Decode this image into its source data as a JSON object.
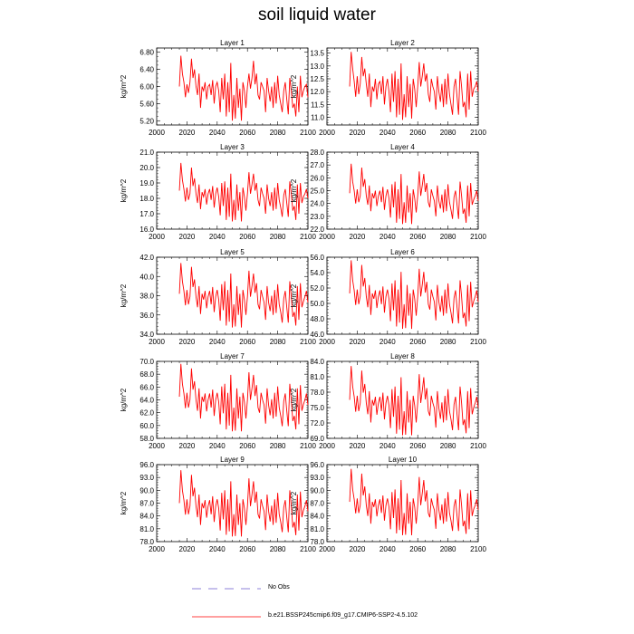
{
  "page": {
    "title": "soil liquid water"
  },
  "shared_axes": {
    "x_ticks": [
      2000,
      2020,
      2040,
      2060,
      2080,
      2100
    ],
    "xlim": [
      2000,
      2100
    ],
    "ylabel": "kg/m^2"
  },
  "series_meta": {
    "x_start": 2015,
    "x_end": 2100,
    "line_color": "#ff0000"
  },
  "legend": {
    "no_obs_label": "No Obs",
    "no_obs_color": "#6a5acd",
    "model_label": "b.e21.BSSP245cmip6.f09_g17.CMIP6-SSP2-4.5.102",
    "model_color": "#ff0000"
  },
  "chart_data": [
    {
      "type": "line",
      "title": "Layer 1",
      "ylabel": "kg/m^2",
      "ylim": [
        5.1,
        6.9
      ],
      "yticks": [
        "6.80",
        "6.40",
        "6.00",
        "5.60",
        "5.20"
      ],
      "minor_step": 0.1,
      "x_start": 2015,
      "values": [
        6.0,
        6.72,
        6.3,
        6.1,
        5.75,
        6.05,
        5.85,
        6.1,
        6.65,
        6.2,
        6.4,
        6.0,
        5.8,
        6.3,
        5.5,
        6.0,
        5.9,
        6.1,
        5.7,
        6.0,
        6.05,
        5.8,
        6.15,
        5.6,
        6.0,
        6.1,
        5.9,
        5.4,
        6.2,
        5.7,
        6.3,
        5.3,
        6.1,
        5.4,
        6.55,
        5.2,
        5.8,
        5.25,
        6.2,
        5.5,
        5.95,
        5.2,
        6.1,
        5.9,
        5.5,
        6.0,
        6.3,
        5.95,
        6.2,
        6.6,
        6.05,
        6.3,
        5.8,
        5.7,
        6.1,
        6.0,
        5.9,
        5.4,
        6.2,
        5.9,
        5.65,
        6.0,
        5.5,
        6.1,
        5.6,
        6.25,
        5.8,
        5.6,
        5.4,
        5.9,
        6.1,
        5.7,
        5.35,
        6.2,
        5.9,
        5.5,
        5.6,
        5.3,
        6.0,
        5.4,
        6.25,
        5.75,
        5.9,
        6.0,
        6.05,
        5.75
      ]
    },
    {
      "type": "line",
      "title": "Layer 2",
      "ylabel": "kg/m^2",
      "ylim": [
        10.7,
        13.7
      ],
      "yticks": [
        "13.5",
        "13.0",
        "12.5",
        "12.0",
        "11.5",
        "11.0"
      ],
      "minor_step": 0.1,
      "x_start": 2015,
      "values": [
        12.2,
        13.55,
        12.9,
        12.4,
        11.8,
        12.6,
        11.9,
        12.3,
        13.35,
        12.6,
        12.9,
        12.3,
        11.8,
        12.7,
        11.4,
        12.2,
        12.0,
        12.5,
        11.7,
        12.3,
        12.4,
        11.9,
        12.6,
        11.5,
        12.2,
        12.5,
        12.0,
        11.2,
        12.7,
        11.6,
        12.8,
        11.0,
        12.5,
        11.1,
        13.1,
        10.9,
        11.9,
        11.0,
        12.6,
        11.4,
        12.3,
        10.95,
        12.5,
        12.1,
        11.4,
        12.2,
        13.15,
        12.2,
        12.6,
        13.1,
        12.4,
        12.7,
        11.9,
        11.6,
        12.5,
        12.2,
        12.0,
        11.3,
        12.6,
        12.0,
        11.6,
        12.3,
        11.4,
        12.5,
        11.5,
        12.7,
        11.9,
        11.5,
        11.1,
        12.2,
        12.5,
        11.8,
        11.1,
        12.8,
        12.2,
        11.4,
        11.6,
        11.0,
        12.7,
        11.3,
        12.8,
        11.8,
        12.1,
        12.2,
        12.4,
        12.0
      ]
    },
    {
      "type": "line",
      "title": "Layer 3",
      "ylabel": "kg/m^2",
      "ylim": [
        16.0,
        21.0
      ],
      "yticks": [
        "21.0",
        "20.0",
        "19.0",
        "18.0",
        "17.0",
        "16.0"
      ],
      "minor_step": 0.2,
      "x_start": 2015,
      "values": [
        18.5,
        20.3,
        19.2,
        18.6,
        17.8,
        18.7,
        17.9,
        18.3,
        20.0,
        18.8,
        19.3,
        18.3,
        17.7,
        18.9,
        17.3,
        18.4,
        18.1,
        18.6,
        17.6,
        18.3,
        18.6,
        17.9,
        18.8,
        17.4,
        18.3,
        18.7,
        18.1,
        16.9,
        19.0,
        17.5,
        19.1,
        16.6,
        18.7,
        16.8,
        19.6,
        16.5,
        17.9,
        16.6,
        18.9,
        17.2,
        18.4,
        16.5,
        18.7,
        18.1,
        17.2,
        18.3,
        19.7,
        18.3,
        18.9,
        19.6,
        18.5,
        19.0,
        17.9,
        17.5,
        18.7,
        18.3,
        18.0,
        17.0,
        18.9,
        18.0,
        17.5,
        18.4,
        17.2,
        18.7,
        17.3,
        19.0,
        17.9,
        17.4,
        16.8,
        18.2,
        18.6,
        17.7,
        16.8,
        19.1,
        18.3,
        17.2,
        17.5,
        16.6,
        18.9,
        17.0,
        19.0,
        17.7,
        18.1,
        18.3,
        18.6,
        18.0
      ]
    },
    {
      "type": "line",
      "title": "Layer 4",
      "ylabel": "kg/m^2",
      "ylim": [
        22.0,
        28.0
      ],
      "yticks": [
        "28.0",
        "27.0",
        "26.0",
        "25.0",
        "24.0",
        "23.0",
        "22.0"
      ],
      "minor_step": 0.2,
      "x_start": 2015,
      "values": [
        24.8,
        27.1,
        25.7,
        25.0,
        24.0,
        25.1,
        24.1,
        24.6,
        26.8,
        25.3,
        25.9,
        24.6,
        23.9,
        25.4,
        23.4,
        24.8,
        24.4,
        25.0,
        23.8,
        24.6,
        25.0,
        24.1,
        25.3,
        23.5,
        24.6,
        25.1,
        24.4,
        22.9,
        25.5,
        23.7,
        25.7,
        22.5,
        25.1,
        22.8,
        26.3,
        22.4,
        24.1,
        22.5,
        25.4,
        23.3,
        24.8,
        22.4,
        25.1,
        24.4,
        23.3,
        24.6,
        26.5,
        24.6,
        25.4,
        26.3,
        24.9,
        25.6,
        24.1,
        23.7,
        25.1,
        24.6,
        24.2,
        23.0,
        25.4,
        24.2,
        23.6,
        24.7,
        23.3,
        25.1,
        23.4,
        25.5,
        24.1,
        23.5,
        22.8,
        24.5,
        25.0,
        23.9,
        22.8,
        25.7,
        24.6,
        23.2,
        23.6,
        22.5,
        25.4,
        23.0,
        25.6,
        23.9,
        24.3,
        24.6,
        25.0,
        24.2
      ]
    },
    {
      "type": "line",
      "title": "Layer 5",
      "ylabel": "kg/m^2",
      "ylim": [
        34.0,
        42.0
      ],
      "yticks": [
        "42.0",
        "40.0",
        "38.0",
        "36.0",
        "34.0"
      ],
      "minor_step": 0.4,
      "x_start": 2015,
      "values": [
        38.2,
        41.4,
        39.5,
        38.5,
        37.0,
        38.6,
        37.1,
        37.9,
        41.0,
        38.9,
        39.7,
        37.9,
        36.8,
        39.0,
        36.1,
        38.2,
        37.6,
        38.5,
        36.7,
        37.9,
        38.5,
        37.1,
        38.9,
        36.3,
        37.9,
        38.6,
        37.6,
        35.4,
        39.2,
        36.5,
        39.5,
        34.9,
        38.6,
        35.3,
        40.3,
        34.7,
        37.1,
        34.8,
        39.0,
        36.0,
        38.2,
        34.7,
        38.6,
        37.6,
        36.0,
        37.9,
        40.6,
        37.9,
        39.0,
        40.3,
        38.3,
        39.3,
        37.1,
        36.6,
        38.6,
        37.9,
        37.3,
        35.5,
        39.0,
        37.3,
        36.4,
        38.0,
        36.0,
        38.6,
        36.2,
        39.2,
        37.1,
        36.3,
        35.2,
        37.7,
        38.5,
        36.8,
        35.2,
        39.5,
        37.9,
        35.8,
        36.3,
        34.9,
        39.0,
        35.5,
        39.3,
        36.8,
        37.4,
        37.9,
        38.5,
        37.3
      ]
    },
    {
      "type": "line",
      "title": "Layer 6",
      "ylabel": "kg/m^2",
      "ylim": [
        46.0,
        56.0
      ],
      "yticks": [
        "56.0",
        "54.0",
        "52.0",
        "50.0",
        "48.0",
        "46.0"
      ],
      "minor_step": 0.4,
      "x_start": 2015,
      "values": [
        51.3,
        55.6,
        53.0,
        51.7,
        49.8,
        51.8,
        49.9,
        50.9,
        55.0,
        52.2,
        53.3,
        50.9,
        49.5,
        52.4,
        48.5,
        51.3,
        50.6,
        51.7,
        49.4,
        50.9,
        51.7,
        49.9,
        52.2,
        48.8,
        50.9,
        51.8,
        50.6,
        47.7,
        52.6,
        49.1,
        53.0,
        47.0,
        51.8,
        47.5,
        54.1,
        46.7,
        49.9,
        46.8,
        52.4,
        48.4,
        51.3,
        46.7,
        51.8,
        50.6,
        48.4,
        50.9,
        54.5,
        50.9,
        52.4,
        54.1,
        51.4,
        52.8,
        49.9,
        49.2,
        51.8,
        50.9,
        50.2,
        47.8,
        52.4,
        50.2,
        48.9,
        51.0,
        48.4,
        51.8,
        48.7,
        52.6,
        49.9,
        48.8,
        47.4,
        50.7,
        51.7,
        49.5,
        47.4,
        53.0,
        50.9,
        48.1,
        48.8,
        47.0,
        52.4,
        47.7,
        52.8,
        49.5,
        50.3,
        50.9,
        51.7,
        50.2
      ]
    },
    {
      "type": "line",
      "title": "Layer 7",
      "ylabel": "kg/m^2",
      "ylim": [
        58.0,
        70.0
      ],
      "yticks": [
        "70.0",
        "68.0",
        "66.0",
        "64.0",
        "62.0",
        "60.0",
        "58.0"
      ],
      "minor_step": 0.4,
      "x_start": 2015,
      "values": [
        64.5,
        69.6,
        66.5,
        65.0,
        62.7,
        65.1,
        62.8,
        64.0,
        68.9,
        65.6,
        66.9,
        64.0,
        62.3,
        65.8,
        61.1,
        64.5,
        63.7,
        65.0,
        62.2,
        64.0,
        65.0,
        62.8,
        65.6,
        61.5,
        64.0,
        65.1,
        63.7,
        60.2,
        66.1,
        61.9,
        66.5,
        59.4,
        65.1,
        60.0,
        67.9,
        59.1,
        62.8,
        59.2,
        65.8,
        61.1,
        64.5,
        59.1,
        65.1,
        63.7,
        61.1,
        64.0,
        68.3,
        64.0,
        65.8,
        67.9,
        64.6,
        66.3,
        62.8,
        62.0,
        65.1,
        64.0,
        63.2,
        60.3,
        65.8,
        63.2,
        61.6,
        64.1,
        61.1,
        65.1,
        61.4,
        66.1,
        62.8,
        61.5,
        59.9,
        63.8,
        65.0,
        62.3,
        59.9,
        66.5,
        64.0,
        60.7,
        61.5,
        59.4,
        65.8,
        60.2,
        66.3,
        62.3,
        63.3,
        64.0,
        65.0,
        63.2
      ]
    },
    {
      "type": "line",
      "title": "Layer 8",
      "ylabel": "kg/m^2",
      "ylim": [
        69.0,
        84.0
      ],
      "yticks": [
        "84.0",
        "81.0",
        "78.0",
        "75.0",
        "72.0",
        "69.0"
      ],
      "minor_step": 0.6,
      "x_start": 2015,
      "values": [
        76.5,
        83.1,
        79.1,
        77.1,
        74.2,
        77.3,
        74.3,
        75.9,
        82.2,
        77.9,
        79.6,
        75.9,
        73.7,
        78.2,
        72.1,
        76.5,
        75.4,
        77.1,
        73.6,
        75.9,
        77.1,
        74.3,
        77.9,
        72.7,
        75.9,
        77.3,
        75.4,
        71.0,
        78.6,
        73.2,
        79.1,
        69.9,
        77.3,
        70.7,
        80.9,
        69.6,
        74.3,
        69.7,
        78.2,
        72.1,
        76.5,
        69.6,
        77.3,
        75.4,
        72.1,
        75.9,
        81.5,
        75.9,
        78.2,
        80.9,
        76.6,
        78.8,
        74.3,
        73.4,
        77.3,
        75.9,
        74.9,
        71.1,
        78.2,
        74.9,
        72.8,
        76.0,
        72.1,
        77.3,
        72.5,
        78.6,
        74.3,
        72.7,
        70.6,
        75.6,
        77.1,
        73.7,
        70.6,
        79.1,
        75.9,
        71.6,
        72.7,
        70.0,
        78.2,
        71.0,
        78.8,
        73.7,
        75.0,
        75.9,
        77.1,
        74.9
      ]
    },
    {
      "type": "line",
      "title": "Layer 9",
      "ylabel": "kg/m^2",
      "ylim": [
        78.0,
        96.0
      ],
      "yticks": [
        "96.0",
        "93.0",
        "90.0",
        "87.0",
        "84.0",
        "81.0",
        "78.0"
      ],
      "minor_step": 0.6,
      "x_start": 2015,
      "values": [
        87.0,
        94.7,
        90.0,
        87.7,
        84.3,
        87.9,
        84.4,
        86.3,
        93.6,
        88.6,
        90.6,
        86.3,
        83.7,
        89.0,
        81.9,
        87.0,
        85.8,
        87.7,
        83.6,
        86.3,
        87.7,
        84.4,
        88.6,
        82.6,
        86.3,
        87.9,
        85.8,
        80.6,
        89.4,
        83.2,
        90.0,
        79.6,
        87.9,
        80.4,
        92.1,
        79.2,
        84.4,
        79.3,
        89.0,
        81.9,
        87.0,
        79.2,
        87.9,
        85.8,
        81.9,
        86.3,
        92.8,
        86.3,
        89.0,
        92.1,
        87.1,
        89.7,
        84.4,
        83.4,
        87.9,
        86.3,
        85.1,
        80.7,
        89.0,
        85.1,
        82.7,
        86.4,
        81.9,
        87.9,
        82.4,
        89.4,
        84.4,
        82.6,
        80.2,
        86.0,
        87.7,
        83.7,
        80.2,
        90.0,
        86.3,
        81.3,
        82.6,
        79.5,
        89.0,
        80.6,
        89.7,
        83.7,
        85.3,
        86.3,
        87.7,
        85.1
      ]
    },
    {
      "type": "line",
      "title": "Layer 10",
      "ylabel": "kg/m^2",
      "ylim": [
        78.0,
        96.0
      ],
      "yticks": [
        "96.0",
        "93.0",
        "90.0",
        "87.0",
        "84.0",
        "81.0",
        "78.0"
      ],
      "minor_step": 0.6,
      "x_start": 2015,
      "values": [
        87.3,
        95.0,
        90.2,
        87.9,
        84.6,
        88.1,
        84.7,
        86.5,
        93.9,
        88.8,
        90.9,
        86.5,
        84.0,
        89.3,
        82.2,
        87.3,
        86.1,
        87.9,
        83.9,
        86.5,
        87.9,
        84.7,
        88.8,
        82.9,
        86.5,
        88.1,
        86.1,
        80.9,
        89.6,
        83.5,
        90.2,
        79.9,
        88.1,
        80.7,
        92.4,
        79.5,
        84.7,
        79.6,
        89.3,
        82.2,
        87.3,
        79.5,
        88.1,
        86.1,
        82.2,
        86.5,
        93.1,
        86.5,
        89.3,
        92.4,
        87.4,
        90.0,
        84.7,
        83.7,
        88.1,
        86.5,
        85.4,
        81.0,
        89.3,
        85.4,
        83.0,
        86.7,
        82.2,
        88.1,
        82.7,
        89.6,
        84.7,
        82.9,
        80.5,
        86.3,
        87.9,
        84.0,
        80.5,
        90.2,
        86.5,
        81.6,
        82.9,
        79.8,
        89.3,
        80.9,
        90.0,
        84.0,
        85.6,
        86.5,
        87.9,
        85.4
      ]
    }
  ]
}
